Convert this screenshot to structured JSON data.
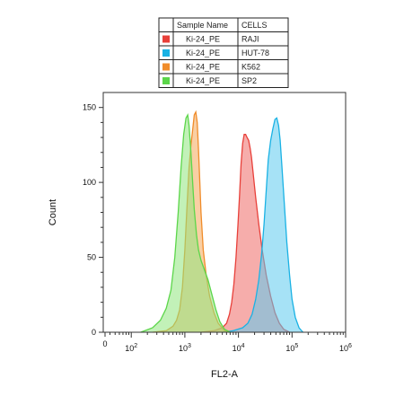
{
  "chart_data": {
    "type": "area",
    "xlabel": "FL2-A",
    "ylabel": "Count",
    "x_scale": "log",
    "xlim": [
      30,
      1000000
    ],
    "ylim": [
      0,
      160
    ],
    "x_ticks": [
      {
        "value": 100,
        "label": "10",
        "exp": "2"
      },
      {
        "value": 1000,
        "label": "10",
        "exp": "3"
      },
      {
        "value": 10000,
        "label": "10",
        "exp": "4"
      },
      {
        "value": 100000,
        "label": "10",
        "exp": "5"
      },
      {
        "value": 1000000,
        "label": "10",
        "exp": "6"
      }
    ],
    "x_tick0_label": "0",
    "y_ticks": [
      0,
      50,
      100,
      150
    ],
    "legend": {
      "placement": "top",
      "headers": [
        "Sample Name",
        "CELLS"
      ]
    },
    "series": [
      {
        "sample": "Ki-24_PE",
        "cells": "RAJI",
        "color": "#e8403a",
        "fill": "#ee6a66",
        "points": [
          [
            2000,
            0
          ],
          [
            3500,
            1
          ],
          [
            5000,
            3
          ],
          [
            6000,
            6
          ],
          [
            6800,
            12
          ],
          [
            7500,
            20
          ],
          [
            8200,
            32
          ],
          [
            9000,
            50
          ],
          [
            9800,
            72
          ],
          [
            10500,
            92
          ],
          [
            11200,
            112
          ],
          [
            12000,
            126
          ],
          [
            12800,
            132
          ],
          [
            13600,
            132
          ],
          [
            14500,
            130
          ],
          [
            15500,
            128
          ],
          [
            16500,
            123
          ],
          [
            17500,
            117
          ],
          [
            19000,
            105
          ],
          [
            21000,
            90
          ],
          [
            24000,
            72
          ],
          [
            28000,
            54
          ],
          [
            33000,
            38
          ],
          [
            40000,
            24
          ],
          [
            48000,
            13
          ],
          [
            58000,
            6
          ],
          [
            70000,
            2
          ],
          [
            90000,
            0
          ]
        ]
      },
      {
        "sample": "Ki-24_PE",
        "cells": "HUT-78",
        "color": "#1ab2e4",
        "fill": "#5ccaee",
        "points": [
          [
            5000,
            0
          ],
          [
            8000,
            1
          ],
          [
            12000,
            3
          ],
          [
            15000,
            6
          ],
          [
            18000,
            12
          ],
          [
            21000,
            22
          ],
          [
            24000,
            35
          ],
          [
            27000,
            52
          ],
          [
            30000,
            72
          ],
          [
            33000,
            95
          ],
          [
            36000,
            115
          ],
          [
            40000,
            128
          ],
          [
            44000,
            136
          ],
          [
            48000,
            142
          ],
          [
            52000,
            143
          ],
          [
            56000,
            138
          ],
          [
            60000,
            128
          ],
          [
            65000,
            110
          ],
          [
            72000,
            85
          ],
          [
            80000,
            60
          ],
          [
            90000,
            38
          ],
          [
            100000,
            22
          ],
          [
            115000,
            10
          ],
          [
            135000,
            3
          ],
          [
            160000,
            0
          ]
        ]
      },
      {
        "sample": "Ki-24_PE",
        "cells": "K562",
        "color": "#f08c2a",
        "fill": "#f4a85a",
        "points": [
          [
            250,
            0
          ],
          [
            450,
            1
          ],
          [
            600,
            4
          ],
          [
            700,
            8
          ],
          [
            800,
            15
          ],
          [
            900,
            30
          ],
          [
            1000,
            55
          ],
          [
            1100,
            85
          ],
          [
            1200,
            110
          ],
          [
            1300,
            125
          ],
          [
            1400,
            135
          ],
          [
            1500,
            145
          ],
          [
            1600,
            147
          ],
          [
            1700,
            140
          ],
          [
            1800,
            122
          ],
          [
            1900,
            100
          ],
          [
            2000,
            80
          ],
          [
            2200,
            55
          ],
          [
            2500,
            38
          ],
          [
            2900,
            24
          ],
          [
            3500,
            13
          ],
          [
            4200,
            6
          ],
          [
            5500,
            1
          ],
          [
            7000,
            0
          ]
        ]
      },
      {
        "sample": "Ki-24_PE",
        "cells": "SP2",
        "color": "#5cd64a",
        "fill": "#90e67e",
        "points": [
          [
            150,
            0
          ],
          [
            250,
            3
          ],
          [
            350,
            8
          ],
          [
            450,
            16
          ],
          [
            550,
            28
          ],
          [
            650,
            50
          ],
          [
            750,
            80
          ],
          [
            850,
            110
          ],
          [
            950,
            132
          ],
          [
            1050,
            143
          ],
          [
            1130,
            145
          ],
          [
            1200,
            138
          ],
          [
            1300,
            120
          ],
          [
            1400,
            100
          ],
          [
            1500,
            82
          ],
          [
            1650,
            65
          ],
          [
            1800,
            55
          ],
          [
            2000,
            48
          ],
          [
            2300,
            42
          ],
          [
            2700,
            35
          ],
          [
            3200,
            25
          ],
          [
            3800,
            15
          ],
          [
            4500,
            7
          ],
          [
            5500,
            2
          ],
          [
            7000,
            0
          ]
        ]
      }
    ]
  }
}
